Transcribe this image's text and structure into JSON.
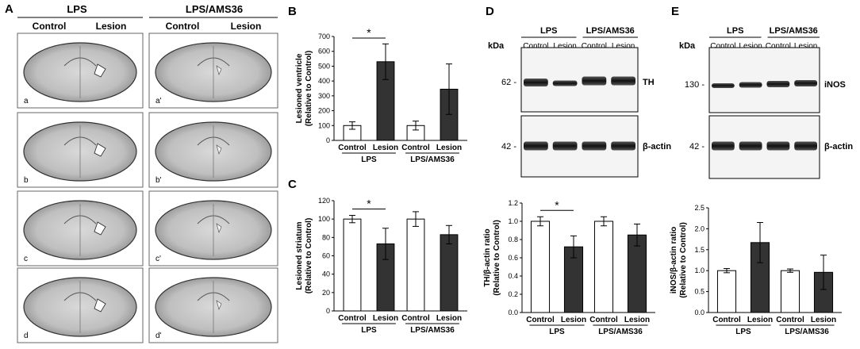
{
  "panel_letters": {
    "A": "A",
    "B": "B",
    "C": "C",
    "D": "D",
    "E": "E"
  },
  "panel_a": {
    "group_lps": "LPS",
    "group_ams": "LPS/AMS36",
    "col_control": "Control",
    "col_lesion": "Lesion",
    "rows": [
      "a",
      "b",
      "c",
      "d"
    ],
    "rows_prime": [
      "a'",
      "b'",
      "c'",
      "d'"
    ]
  },
  "chart_data": [
    {
      "id": "B",
      "type": "bar",
      "ylabel_line1": "Lesioned ventricle",
      "ylabel_line2": "(Relative to Control)",
      "ylim": [
        0,
        700
      ],
      "yticks": [
        0,
        100,
        200,
        300,
        400,
        500,
        600,
        700
      ],
      "categories": [
        "Control",
        "Lesion",
        "Control",
        "Lesion"
      ],
      "groups": [
        "LPS",
        "LPS/AMS36"
      ],
      "values": [
        100,
        530,
        100,
        345
      ],
      "errors": [
        25,
        120,
        30,
        170
      ],
      "fills": [
        "#ffffff",
        "#333333",
        "#ffffff",
        "#333333"
      ],
      "significance": "*"
    },
    {
      "id": "C",
      "type": "bar",
      "ylabel_line1": "Lesioned striatum",
      "ylabel_line2": "(Relative to Control)",
      "ylim": [
        0,
        120
      ],
      "yticks": [
        0,
        20,
        40,
        60,
        80,
        100,
        120
      ],
      "categories": [
        "Control",
        "Lesion",
        "Control",
        "Lesion"
      ],
      "groups": [
        "LPS",
        "LPS/AMS36"
      ],
      "values": [
        100,
        73,
        100,
        83
      ],
      "errors": [
        4,
        17,
        8,
        10
      ],
      "fills": [
        "#ffffff",
        "#333333",
        "#ffffff",
        "#333333"
      ],
      "significance": "*"
    },
    {
      "id": "D",
      "type": "bar",
      "ylabel_line1": "TH/β-actin ratio",
      "ylabel_line2": "(Relative to Control)",
      "ylim": [
        0,
        1.2
      ],
      "yticks": [
        "0.0",
        "0.2",
        "0.4",
        "0.6",
        "0.8",
        "1.0",
        "1.2"
      ],
      "categories": [
        "Control",
        "Lesion",
        "Control",
        "Lesion"
      ],
      "groups": [
        "LPS",
        "LPS/AMS36"
      ],
      "values": [
        1.0,
        0.72,
        1.0,
        0.85
      ],
      "errors": [
        0.05,
        0.12,
        0.05,
        0.12
      ],
      "fills": [
        "#ffffff",
        "#333333",
        "#ffffff",
        "#333333"
      ],
      "significance": "*"
    },
    {
      "id": "E",
      "type": "bar",
      "ylabel_line1": "iNOS/β-actin ratio",
      "ylabel_line2": "(Relative to Control)",
      "ylim": [
        0,
        2.5
      ],
      "yticks": [
        "0.0",
        "0.5",
        "1.0",
        "1.5",
        "2.0",
        "2.5"
      ],
      "categories": [
        "Control",
        "Lesion",
        "Control",
        "Lesion"
      ],
      "groups": [
        "LPS",
        "LPS/AMS36"
      ],
      "values": [
        1.0,
        1.67,
        1.0,
        0.96
      ],
      "errors": [
        0.05,
        0.48,
        0.04,
        0.41
      ],
      "fills": [
        "#ffffff",
        "#333333",
        "#ffffff",
        "#333333"
      ],
      "significance": ""
    }
  ],
  "blot_d": {
    "groups": [
      "LPS",
      "LPS/AMS36"
    ],
    "lanes": [
      "Control",
      "Lesion",
      "Control",
      "Lesion"
    ],
    "kda_label": "kDa",
    "markers": [
      "62 -",
      "42 -"
    ],
    "proteins": [
      "TH",
      "β-actin"
    ]
  },
  "blot_e": {
    "groups": [
      "LPS",
      "LPS/AMS36"
    ],
    "lanes": [
      "Control",
      "Lesion",
      "Control",
      "Lesion"
    ],
    "kda_label": "kDa",
    "markers": [
      "130 -",
      "42 -"
    ],
    "proteins": [
      "iNOS",
      "β-actin"
    ]
  }
}
